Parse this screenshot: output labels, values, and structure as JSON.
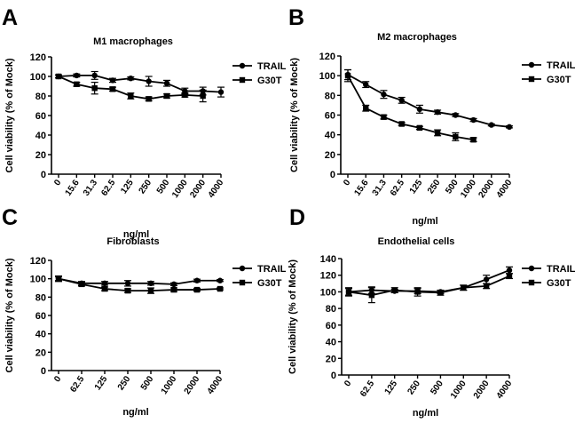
{
  "chart_data": [
    {
      "panel": "A",
      "type": "line",
      "title": "M1 macrophages",
      "xlabel": "ng/ml",
      "ylabel": "Cell viability (% of Mock)",
      "categories": [
        "0",
        "15.6",
        "31.3",
        "62.5",
        "125",
        "250",
        "500",
        "1000",
        "2000",
        "4000"
      ],
      "ylim": [
        0,
        120
      ],
      "yticks": [
        0,
        20,
        40,
        60,
        80,
        100,
        120
      ],
      "legend_position": "right",
      "series": [
        {
          "name": "TRAIL",
          "marker": "circle",
          "values": [
            100,
            101,
            101,
            96,
            98,
            95,
            93,
            85,
            85,
            84
          ],
          "errors": [
            1.5,
            1.5,
            4,
            2,
            1.5,
            5,
            3,
            3,
            4,
            5
          ]
        },
        {
          "name": "G30T",
          "marker": "square",
          "values": [
            100,
            92,
            88,
            87,
            80,
            77,
            80,
            81,
            80,
            null
          ],
          "errors": [
            1.5,
            2,
            6,
            2,
            3,
            2,
            2,
            2,
            6,
            null
          ]
        }
      ]
    },
    {
      "panel": "B",
      "type": "line",
      "title": "M2 macrophages",
      "xlabel": "ng/ml",
      "ylabel": "Cell viability (% of Mock)",
      "categories": [
        "0",
        "15.6",
        "31.3",
        "62.5",
        "125",
        "250",
        "500",
        "1000",
        "2000",
        "4000"
      ],
      "ylim": [
        0,
        120
      ],
      "yticks": [
        0,
        20,
        40,
        60,
        80,
        100,
        120
      ],
      "legend_position": "right",
      "series": [
        {
          "name": "TRAIL",
          "marker": "circle",
          "values": [
            101,
            91,
            81,
            75,
            66,
            63,
            60,
            55,
            50,
            48
          ],
          "errors": [
            5,
            3,
            4,
            3,
            4,
            2,
            1.5,
            1.5,
            1,
            1
          ]
        },
        {
          "name": "G30T",
          "marker": "square",
          "values": [
            100,
            67,
            58,
            51,
            47,
            42,
            38,
            35,
            null,
            null
          ],
          "errors": [
            6,
            3,
            2,
            1.5,
            1.5,
            3,
            4,
            2,
            null,
            null
          ]
        }
      ]
    },
    {
      "panel": "C",
      "type": "line",
      "title": "Fibroblasts",
      "xlabel": "ng/ml",
      "ylabel": "Cell viability (% of Mock)",
      "categories": [
        "0",
        "62.5",
        "125",
        "250",
        "500",
        "1000",
        "2000",
        "4000"
      ],
      "ylim": [
        0,
        120
      ],
      "yticks": [
        0,
        20,
        40,
        60,
        80,
        100,
        120
      ],
      "legend_position": "right",
      "series": [
        {
          "name": "TRAIL",
          "marker": "circle",
          "values": [
            100,
            95,
            95,
            95,
            95,
            94,
            98,
            98
          ],
          "errors": [
            2,
            2,
            2,
            3,
            2,
            1.5,
            1.5,
            1
          ]
        },
        {
          "name": "G30T",
          "marker": "square",
          "values": [
            100,
            94,
            89,
            87,
            87,
            88,
            88,
            89
          ],
          "errors": [
            3,
            2,
            2,
            2,
            3,
            2,
            1.5,
            1
          ]
        }
      ]
    },
    {
      "panel": "D",
      "type": "line",
      "title": "Endothelial cells",
      "xlabel": "ng/ml",
      "ylabel": "Cell viability (% of Mock)",
      "categories": [
        "0",
        "62.5",
        "125",
        "250",
        "500",
        "1000",
        "2000",
        "4000"
      ],
      "ylim": [
        0,
        140
      ],
      "yticks": [
        0,
        20,
        40,
        60,
        80,
        100,
        120,
        140
      ],
      "legend_position": "right",
      "series": [
        {
          "name": "TRAIL",
          "marker": "circle",
          "values": [
            100,
            102,
            101,
            101,
            100,
            105,
            115,
            126
          ],
          "errors": [
            5,
            4,
            2,
            3,
            2,
            3,
            5,
            4
          ]
        },
        {
          "name": "G30T",
          "marker": "square",
          "values": [
            100,
            96,
            102,
            100,
            99,
            105,
            107,
            119
          ],
          "errors": [
            4,
            9,
            3,
            5,
            3,
            3,
            3,
            3
          ]
        }
      ]
    }
  ]
}
